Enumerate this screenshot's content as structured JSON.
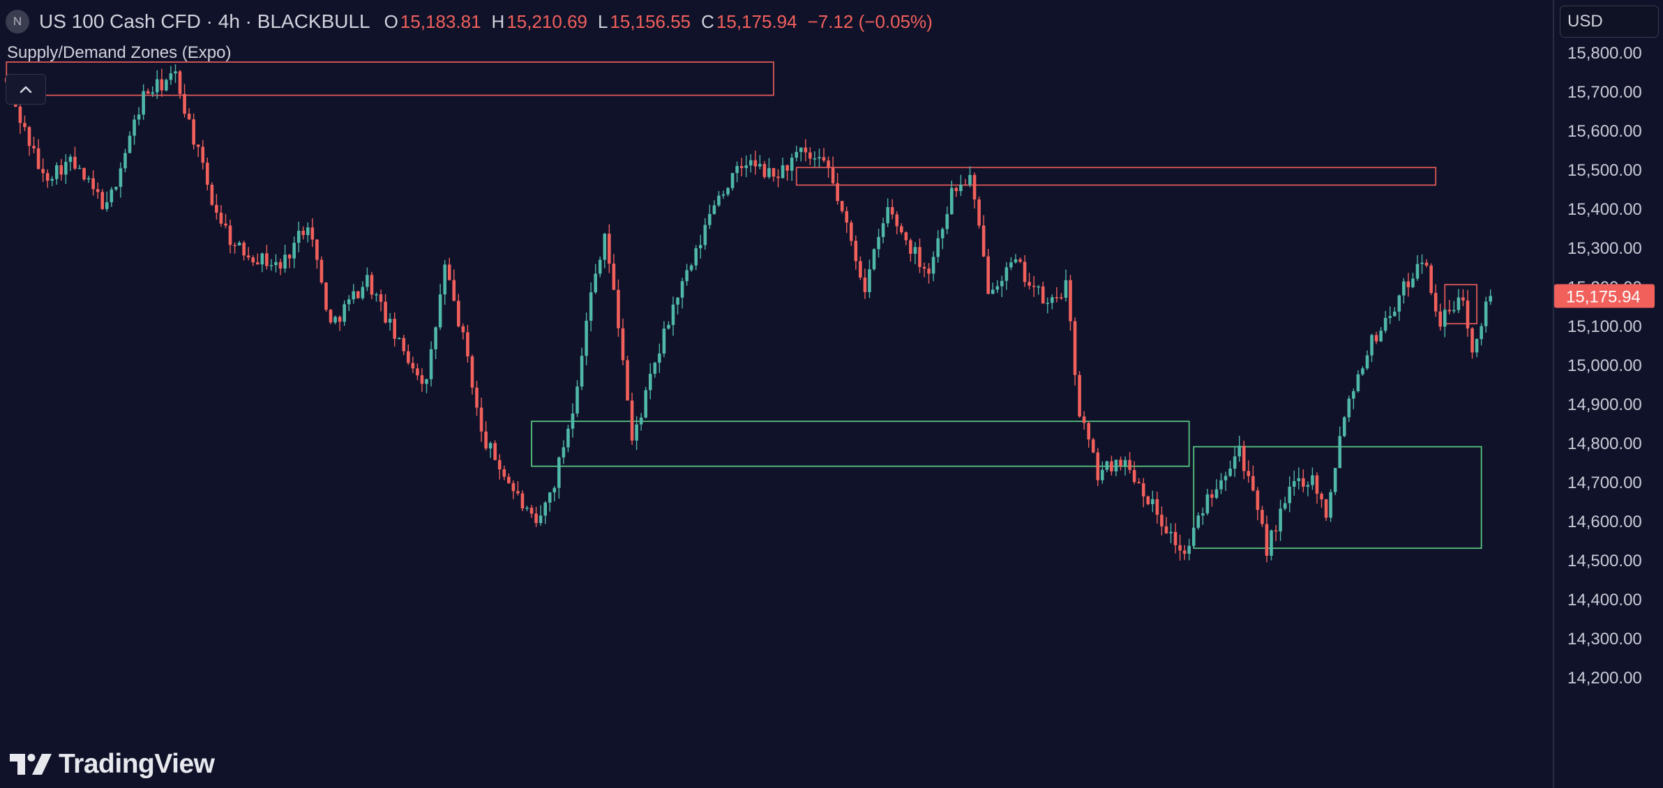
{
  "header": {
    "symbol_badge": "N",
    "title": "US 100 Cash CFD · 4h · BLACKBULL",
    "ohlc": [
      {
        "key": "O",
        "value": "15,183.81"
      },
      {
        "key": "H",
        "value": "15,210.69"
      },
      {
        "key": "L",
        "value": "15,156.55"
      },
      {
        "key": "C",
        "value": "15,175.94"
      }
    ],
    "change": "−7.12 (−0.05%)"
  },
  "indicator": {
    "label": "Supply/Demand Zones (Expo)"
  },
  "currency": {
    "label": "USD"
  },
  "logo": {
    "text": "TradingView"
  },
  "colors": {
    "background": "#10122a",
    "up": "#4fb8a9",
    "down": "#f2605c",
    "supply_zone": "#f2605c",
    "demand_zone": "#5fd98a",
    "price_label": "#f2605c"
  },
  "chart_data": {
    "type": "candlestick",
    "interval": "4h",
    "ylim": [
      14170,
      15830
    ],
    "y_ticks": [
      15800,
      15700,
      15600,
      15500,
      15400,
      15300,
      15200,
      15100,
      15000,
      14900,
      14800,
      14700,
      14600,
      14500,
      14400,
      14300,
      14200
    ],
    "y_tick_labels": [
      "15,800.00",
      "15,700.00",
      "15,600.00",
      "15,500.00",
      "15,400.00",
      "15,300.00",
      "15,200.00",
      "15,100.00",
      "15,000.00",
      "14,900.00",
      "14,800.00",
      "14,700.00",
      "14,600.00",
      "14,500.00",
      "14,400.00",
      "14,300.00",
      "14,200.00"
    ],
    "last_price": 15175.94,
    "last_price_label": "15,175.94",
    "bar_count": 326,
    "close_path": [
      [
        0,
        15720
      ],
      [
        8,
        15480
      ],
      [
        14,
        15520
      ],
      [
        22,
        15400
      ],
      [
        30,
        15690
      ],
      [
        37,
        15740
      ],
      [
        45,
        15420
      ],
      [
        50,
        15300
      ],
      [
        60,
        15250
      ],
      [
        66,
        15370
      ],
      [
        71,
        15100
      ],
      [
        79,
        15220
      ],
      [
        86,
        15050
      ],
      [
        92,
        14950
      ],
      [
        96,
        15250
      ],
      [
        101,
        15020
      ],
      [
        104,
        14820
      ],
      [
        110,
        14700
      ],
      [
        116,
        14580
      ],
      [
        120,
        14700
      ],
      [
        124,
        14890
      ],
      [
        128,
        15180
      ],
      [
        131,
        15340
      ],
      [
        135,
        15020
      ],
      [
        137,
        14800
      ],
      [
        141,
        14960
      ],
      [
        146,
        15150
      ],
      [
        151,
        15280
      ],
      [
        155,
        15420
      ],
      [
        162,
        15520
      ],
      [
        168,
        15480
      ],
      [
        174,
        15540
      ],
      [
        180,
        15500
      ],
      [
        184,
        15350
      ],
      [
        188,
        15200
      ],
      [
        193,
        15400
      ],
      [
        198,
        15300
      ],
      [
        202,
        15240
      ],
      [
        207,
        15440
      ],
      [
        211,
        15480
      ],
      [
        215,
        15200
      ],
      [
        221,
        15260
      ],
      [
        228,
        15150
      ],
      [
        232,
        15200
      ],
      [
        235,
        14880
      ],
      [
        239,
        14720
      ],
      [
        244,
        14760
      ],
      [
        248,
        14700
      ],
      [
        253,
        14600
      ],
      [
        258,
        14510
      ],
      [
        263,
        14660
      ],
      [
        270,
        14790
      ],
      [
        276,
        14530
      ],
      [
        282,
        14700
      ],
      [
        286,
        14710
      ],
      [
        289,
        14620
      ],
      [
        293,
        14880
      ],
      [
        298,
        15040
      ],
      [
        304,
        15150
      ],
      [
        310,
        15280
      ],
      [
        314,
        15110
      ],
      [
        319,
        15170
      ],
      [
        321,
        15050
      ],
      [
        324,
        15150
      ],
      [
        326,
        15176
      ]
    ],
    "zones": [
      {
        "kind": "supply",
        "top": 15775,
        "bottom": 15690,
        "from_bar": 0,
        "to_bar": 168
      },
      {
        "kind": "supply",
        "top": 15505,
        "bottom": 15460,
        "from_bar": 173,
        "to_bar": 313
      },
      {
        "kind": "supply",
        "top": 15205,
        "bottom": 15105,
        "from_bar": 315,
        "to_bar": 322
      },
      {
        "kind": "demand",
        "top": 14855,
        "bottom": 14740,
        "from_bar": 115,
        "to_bar": 259
      },
      {
        "kind": "demand",
        "top": 14790,
        "bottom": 14530,
        "from_bar": 260,
        "to_bar": 323
      }
    ]
  }
}
